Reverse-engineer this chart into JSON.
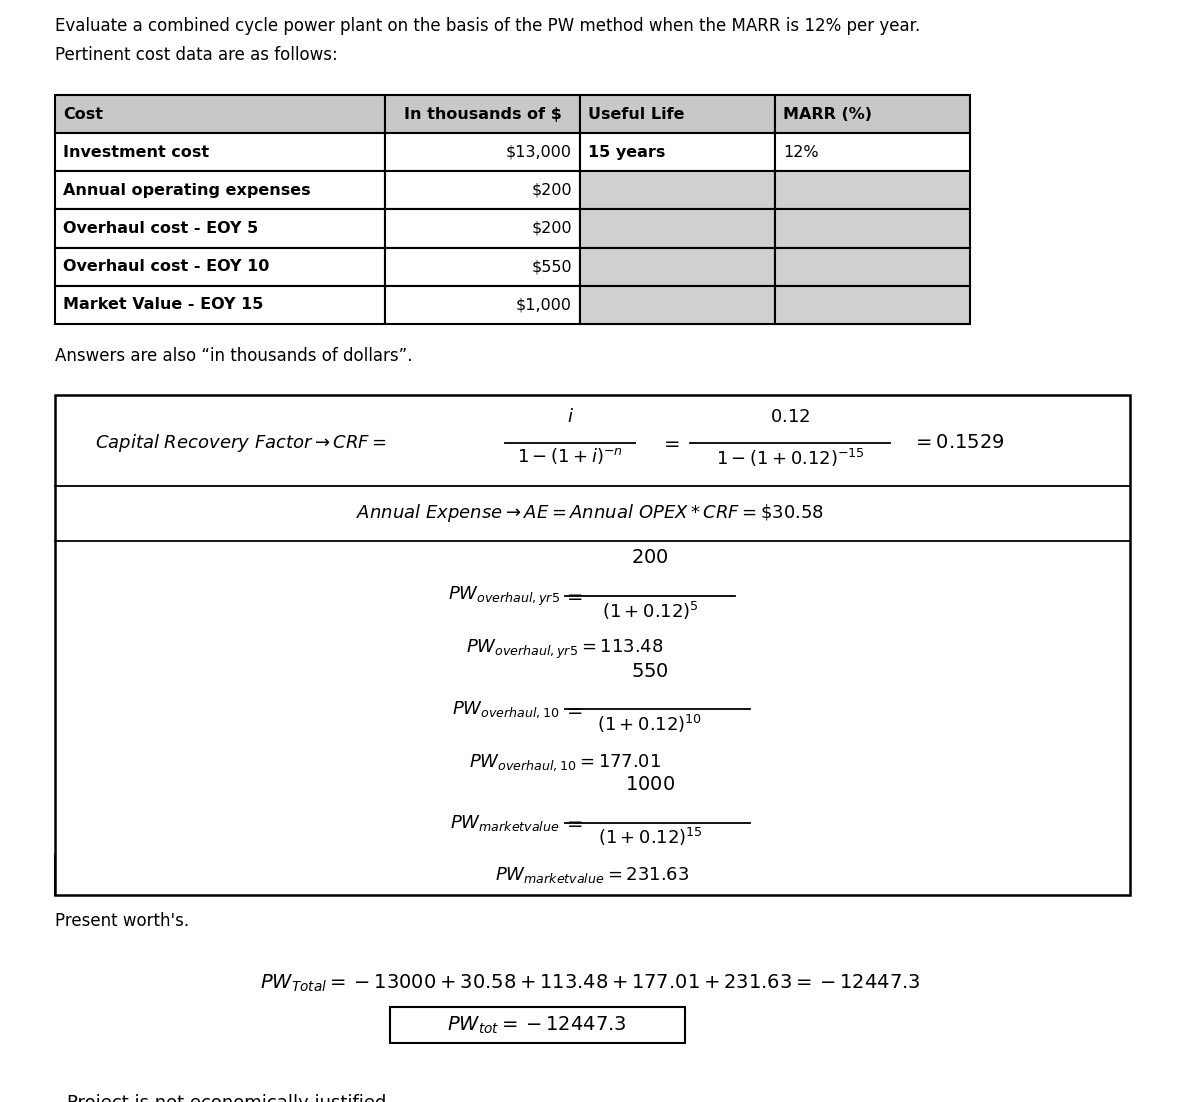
{
  "title_line1": "Evaluate a combined cycle power plant on the basis of the PW method when the MARR is 12% per year.",
  "title_line2": "Pertinent cost data are as follows:",
  "table_headers": [
    "Cost",
    "In thousands of $",
    "Useful Life",
    "MARR (%)"
  ],
  "table_rows": [
    [
      "Investment cost",
      "$13,000",
      "15 years",
      "12%"
    ],
    [
      "Annual operating expenses",
      "$200",
      "",
      ""
    ],
    [
      "Overhaul cost - EOY 5",
      "$200",
      "",
      ""
    ],
    [
      "Overhaul cost - EOY 10",
      "$550",
      "",
      ""
    ],
    [
      "Market Value - EOY 15",
      "$1,000",
      "",
      ""
    ]
  ],
  "answer_note": "Answers are also “in thousands of dollars”.",
  "bg_color": "#ffffff",
  "table_header_bg": "#c8c8c8",
  "table_gray_bg": "#d0d0d0",
  "table_white_bg": "#ffffff"
}
